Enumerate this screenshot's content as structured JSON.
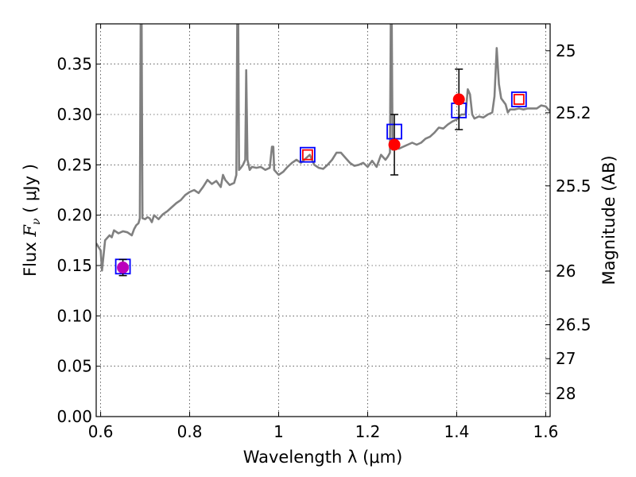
{
  "chart_data": {
    "type": "scatter",
    "xlabel": "Wavelength  λ (μm)",
    "ylabel": {
      "prefix": "Flux ",
      "symbol": "F",
      "subscript": "ν",
      "units": " ( μJy )"
    },
    "y2label": "Magnitude (AB)",
    "xlim": [
      0.59,
      1.61
    ],
    "ylim": [
      0.0,
      0.39
    ],
    "grid": true,
    "x_ticks": [
      {
        "value": 0.6,
        "label": "0.6"
      },
      {
        "value": 0.8,
        "label": "0.8"
      },
      {
        "value": 1.0,
        "label": "1"
      },
      {
        "value": 1.2,
        "label": "1.2"
      },
      {
        "value": 1.4,
        "label": "1.4"
      },
      {
        "value": 1.6,
        "label": "1.6"
      }
    ],
    "y_ticks": [
      {
        "value": 0.0,
        "label": "0.00"
      },
      {
        "value": 0.05,
        "label": "0.05"
      },
      {
        "value": 0.1,
        "label": "0.10"
      },
      {
        "value": 0.15,
        "label": "0.15"
      },
      {
        "value": 0.2,
        "label": "0.20"
      },
      {
        "value": 0.25,
        "label": "0.25"
      },
      {
        "value": 0.3,
        "label": "0.30"
      },
      {
        "value": 0.35,
        "label": "0.35"
      }
    ],
    "y2_ticks": [
      {
        "flux": 0.3633,
        "label": "25"
      },
      {
        "flux": 0.3017,
        "label": "25.2"
      },
      {
        "flux": 0.2291,
        "label": "25.5"
      },
      {
        "flux": 0.1445,
        "label": "26"
      },
      {
        "flux": 0.0912,
        "label": "26.5"
      },
      {
        "flux": 0.0575,
        "label": "27"
      },
      {
        "flux": 0.0229,
        "label": "28"
      }
    ],
    "colors": {
      "spectrum": "#808080",
      "open_red": "#ff0000",
      "open_blue": "#0000ff",
      "filled_red": "#ff0000",
      "filled_purple": "#bb00bb",
      "errorbar": "#000000"
    },
    "series": [
      {
        "kind": "spectrum",
        "points": [
          [
            0.59,
            0.172
          ],
          [
            0.6,
            0.165
          ],
          [
            0.603,
            0.145
          ],
          [
            0.61,
            0.175
          ],
          [
            0.62,
            0.18
          ],
          [
            0.625,
            0.178
          ],
          [
            0.63,
            0.185
          ],
          [
            0.64,
            0.182
          ],
          [
            0.65,
            0.184
          ],
          [
            0.66,
            0.183
          ],
          [
            0.67,
            0.18
          ],
          [
            0.675,
            0.186
          ],
          [
            0.68,
            0.19
          ],
          [
            0.685,
            0.192
          ],
          [
            0.688,
            0.197
          ],
          [
            0.69,
            0.4
          ],
          [
            0.692,
            0.4
          ],
          [
            0.694,
            0.197
          ],
          [
            0.7,
            0.196
          ],
          [
            0.705,
            0.198
          ],
          [
            0.71,
            0.197
          ],
          [
            0.715,
            0.193
          ],
          [
            0.72,
            0.2
          ],
          [
            0.73,
            0.196
          ],
          [
            0.74,
            0.201
          ],
          [
            0.75,
            0.204
          ],
          [
            0.76,
            0.208
          ],
          [
            0.77,
            0.212
          ],
          [
            0.78,
            0.215
          ],
          [
            0.79,
            0.22
          ],
          [
            0.8,
            0.223
          ],
          [
            0.81,
            0.225
          ],
          [
            0.82,
            0.222
          ],
          [
            0.83,
            0.228
          ],
          [
            0.84,
            0.235
          ],
          [
            0.85,
            0.231
          ],
          [
            0.86,
            0.234
          ],
          [
            0.87,
            0.228
          ],
          [
            0.875,
            0.24
          ],
          [
            0.88,
            0.235
          ],
          [
            0.89,
            0.23
          ],
          [
            0.9,
            0.232
          ],
          [
            0.905,
            0.24
          ],
          [
            0.907,
            0.4
          ],
          [
            0.909,
            0.4
          ],
          [
            0.911,
            0.245
          ],
          [
            0.915,
            0.247
          ],
          [
            0.92,
            0.25
          ],
          [
            0.925,
            0.255
          ],
          [
            0.927,
            0.344
          ],
          [
            0.93,
            0.255
          ],
          [
            0.935,
            0.245
          ],
          [
            0.94,
            0.248
          ],
          [
            0.95,
            0.247
          ],
          [
            0.96,
            0.248
          ],
          [
            0.97,
            0.245
          ],
          [
            0.98,
            0.247
          ],
          [
            0.985,
            0.268
          ],
          [
            0.988,
            0.268
          ],
          [
            0.99,
            0.245
          ],
          [
            1.0,
            0.24
          ],
          [
            1.01,
            0.243
          ],
          [
            1.02,
            0.248
          ],
          [
            1.03,
            0.252
          ],
          [
            1.04,
            0.255
          ],
          [
            1.05,
            0.252
          ],
          [
            1.06,
            0.256
          ],
          [
            1.07,
            0.26
          ],
          [
            1.08,
            0.25
          ],
          [
            1.09,
            0.247
          ],
          [
            1.1,
            0.246
          ],
          [
            1.11,
            0.25
          ],
          [
            1.12,
            0.255
          ],
          [
            1.13,
            0.262
          ],
          [
            1.14,
            0.262
          ],
          [
            1.15,
            0.257
          ],
          [
            1.16,
            0.252
          ],
          [
            1.17,
            0.249
          ],
          [
            1.18,
            0.25
          ],
          [
            1.19,
            0.252
          ],
          [
            1.2,
            0.248
          ],
          [
            1.21,
            0.254
          ],
          [
            1.22,
            0.248
          ],
          [
            1.23,
            0.26
          ],
          [
            1.24,
            0.255
          ],
          [
            1.245,
            0.258
          ],
          [
            1.25,
            0.262
          ],
          [
            1.252,
            0.4
          ],
          [
            1.254,
            0.4
          ],
          [
            1.256,
            0.265
          ],
          [
            1.26,
            0.268
          ],
          [
            1.27,
            0.266
          ],
          [
            1.28,
            0.268
          ],
          [
            1.29,
            0.27
          ],
          [
            1.3,
            0.272
          ],
          [
            1.31,
            0.27
          ],
          [
            1.32,
            0.272
          ],
          [
            1.33,
            0.276
          ],
          [
            1.34,
            0.278
          ],
          [
            1.35,
            0.282
          ],
          [
            1.36,
            0.287
          ],
          [
            1.37,
            0.286
          ],
          [
            1.38,
            0.29
          ],
          [
            1.39,
            0.293
          ],
          [
            1.4,
            0.295
          ],
          [
            1.41,
            0.3
          ],
          [
            1.42,
            0.3
          ],
          [
            1.425,
            0.325
          ],
          [
            1.43,
            0.32
          ],
          [
            1.435,
            0.3
          ],
          [
            1.44,
            0.296
          ],
          [
            1.45,
            0.298
          ],
          [
            1.46,
            0.297
          ],
          [
            1.47,
            0.3
          ],
          [
            1.48,
            0.302
          ],
          [
            1.485,
            0.318
          ],
          [
            1.49,
            0.366
          ],
          [
            1.495,
            0.33
          ],
          [
            1.5,
            0.316
          ],
          [
            1.51,
            0.31
          ],
          [
            1.515,
            0.302
          ],
          [
            1.52,
            0.305
          ],
          [
            1.53,
            0.305
          ],
          [
            1.54,
            0.306
          ],
          [
            1.55,
            0.305
          ],
          [
            1.56,
            0.306
          ],
          [
            1.57,
            0.306
          ],
          [
            1.58,
            0.306
          ],
          [
            1.59,
            0.309
          ],
          [
            1.6,
            0.308
          ],
          [
            1.61,
            0.303
          ]
        ]
      },
      {
        "kind": "open-squares",
        "points": [
          {
            "x": 0.65,
            "y": 0.149,
            "color": "blue",
            "size": "large"
          },
          {
            "x": 1.065,
            "y": 0.26,
            "color": "blue",
            "size": "large"
          },
          {
            "x": 1.065,
            "y": 0.26,
            "color": "red",
            "size": "small"
          },
          {
            "x": 1.26,
            "y": 0.283,
            "color": "blue",
            "size": "large"
          },
          {
            "x": 1.405,
            "y": 0.304,
            "color": "blue",
            "size": "large"
          },
          {
            "x": 1.54,
            "y": 0.315,
            "color": "blue",
            "size": "large"
          },
          {
            "x": 1.54,
            "y": 0.315,
            "color": "red",
            "size": "small"
          }
        ]
      },
      {
        "kind": "filled-circles",
        "points": [
          {
            "x": 0.65,
            "y": 0.148,
            "yerr": [
              0.14,
              0.156
            ],
            "color": "purple"
          },
          {
            "x": 1.26,
            "y": 0.27,
            "yerr": [
              0.24,
              0.3
            ],
            "color": "red"
          },
          {
            "x": 1.405,
            "y": 0.315,
            "yerr": [
              0.285,
              0.345
            ],
            "color": "red"
          }
        ]
      }
    ]
  }
}
